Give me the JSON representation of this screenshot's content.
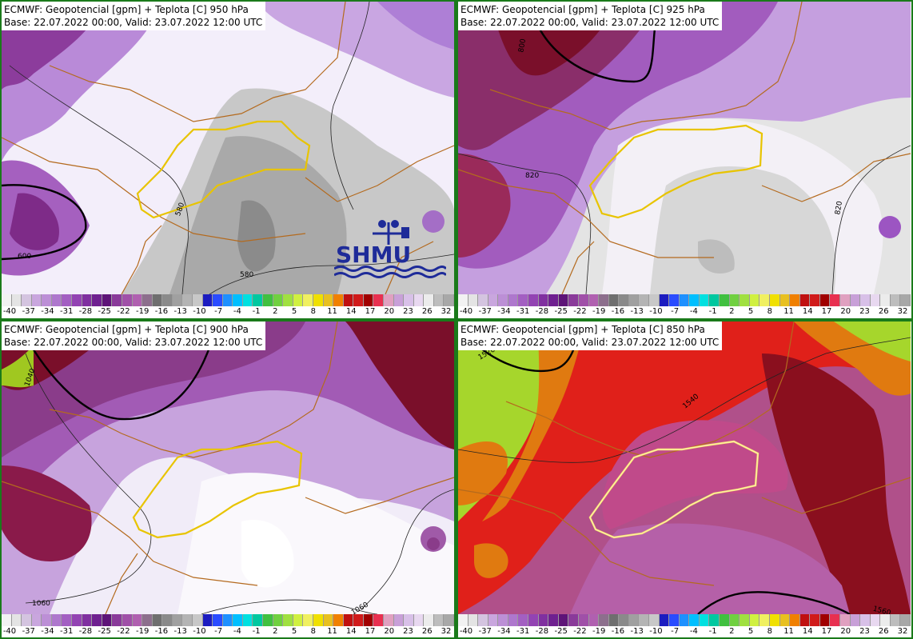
{
  "colors": {
    "frame": "#1a7a1a",
    "scale": [
      "#f2f2f2",
      "#e4e4e4",
      "#d4c4e0",
      "#c9a6de",
      "#bc8fd6",
      "#ae77cd",
      "#a35fc2",
      "#9343b3",
      "#8030a0",
      "#6f2090",
      "#5e1478",
      "#8a3a9a",
      "#a050a8",
      "#b060b0",
      "#8d6f8d",
      "#6f6f6f",
      "#8a8a8a",
      "#a0a0a0",
      "#b4b4b4",
      "#c8c8c8",
      "#1c1cc0",
      "#2a4cff",
      "#1e90ff",
      "#00bfff",
      "#00e0e0",
      "#00c8a0",
      "#40c040",
      "#70d040",
      "#a0e040",
      "#d0f040",
      "#f0f060",
      "#f0e000",
      "#e8c020",
      "#f08000",
      "#c01010",
      "#d01a1a",
      "#a00000",
      "#e83050",
      "#e0a0c0",
      "#c8a0d8",
      "#d8c0e8",
      "#e8d8f0",
      "#ececec",
      "#bdbdbd",
      "#a8a8a8"
    ]
  },
  "panels": [
    {
      "title": "ECMWF: Geopotencial [gpm] + Teplota [C] 950 hPa",
      "base": "Base: 22.07.2022 00:00, Valid: 23.07.2022 12:00 UTC",
      "contours": [
        "580",
        "580",
        "600"
      ],
      "logo": "SHMU",
      "ticks": [
        "-40",
        "-37",
        "-34",
        "-31",
        "-28",
        "-25",
        "-22",
        "-19",
        "-16",
        "-13",
        "-10",
        "-7",
        "-4",
        "-1",
        "2",
        "5",
        "8",
        "11",
        "14",
        "17",
        "20",
        "23",
        "26",
        "32"
      ]
    },
    {
      "title": "ECMWF: Geopotencial [gpm] + Teplota [C] 925 hPa",
      "base": "Base: 22.07.2022 00:00, Valid: 23.07.2022 12:00 UTC",
      "contours": [
        "820",
        "820",
        "800"
      ],
      "ticks": [
        "-40",
        "-37",
        "-34",
        "-31",
        "-28",
        "-25",
        "-22",
        "-19",
        "-16",
        "-13",
        "-10",
        "-7",
        "-4",
        "-1",
        "2",
        "5",
        "8",
        "11",
        "14",
        "17",
        "20",
        "23",
        "26",
        "32"
      ]
    },
    {
      "title": "ECMWF: Geopotencial [gpm] + Teplota [C] 900 hPa",
      "base": "Base: 22.07.2022 00:00, Valid: 23.07.2022 12:00 UTC",
      "contours": [
        "1040",
        "1060",
        "1060"
      ],
      "ticks": [
        "-40",
        "-37",
        "-34",
        "-31",
        "-28",
        "-25",
        "-22",
        "-19",
        "-16",
        "-13",
        "-10",
        "-7",
        "-4",
        "-1",
        "2",
        "5",
        "8",
        "11",
        "14",
        "17",
        "20",
        "23",
        "26",
        "32"
      ]
    },
    {
      "title": "ECMWF: Geopotencial [gpm] + Teplota [C] 850 hPa",
      "base": "Base: 22.07.2022 00:00, Valid: 23.07.2022 12:00 UTC",
      "contours": [
        "1520",
        "1540",
        "1560"
      ],
      "ticks": [
        "-40",
        "-37",
        "-34",
        "-31",
        "-28",
        "-25",
        "-22",
        "-19",
        "-16",
        "-13",
        "-10",
        "-7",
        "-4",
        "-1",
        "2",
        "5",
        "8",
        "11",
        "14",
        "17",
        "20",
        "23",
        "26",
        "32"
      ]
    }
  ]
}
